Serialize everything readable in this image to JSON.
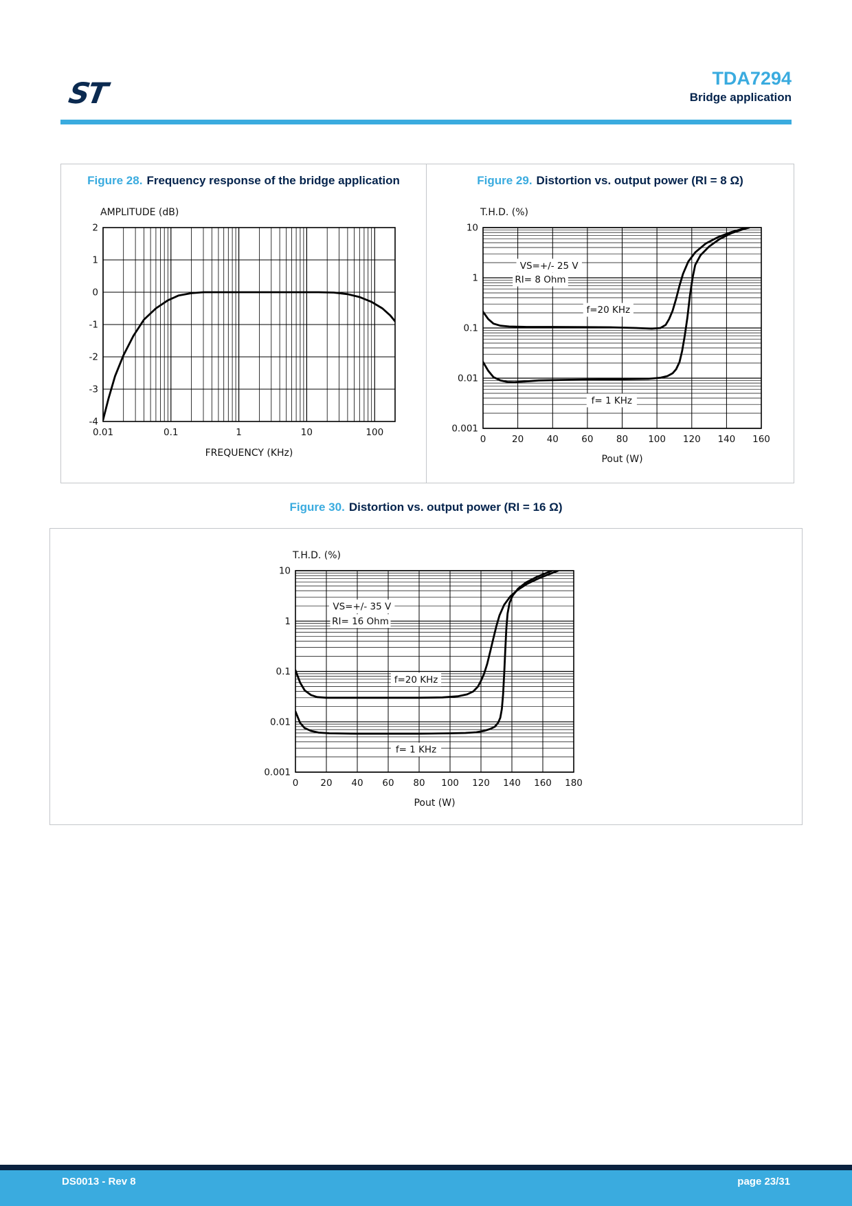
{
  "header": {
    "product": "TDA7294",
    "section": "Bridge application"
  },
  "footer": {
    "left": "DS0013 - Rev 8",
    "right": "page 23/31"
  },
  "colors": {
    "azure": "#3aabdf",
    "navy": "#04234c",
    "footer_navy": "#0a2240",
    "box_border": "#c3c6ca",
    "curve": "#000000"
  },
  "icons": {
    "st_logo": "st-logo"
  },
  "chart_data": [
    {
      "id": "figure-28",
      "type": "line",
      "label": "Figure 28.",
      "title": "Frequency response of the bridge application",
      "ylabel": "AMPLITUDE (dB)",
      "xlabel": "FREQUENCY (KHz)",
      "xscale": "log",
      "yscale": "linear",
      "xlim": [
        0.01,
        200
      ],
      "ylim": [
        -4,
        2
      ],
      "xticks": [
        "0.01",
        "0.1",
        "1",
        "10",
        "100"
      ],
      "yticks": [
        "2",
        "1",
        "0",
        "-1",
        "-2",
        "-3",
        "-4"
      ],
      "grid": "log-x-minor, linear-y-major",
      "legend_position": "none",
      "annotations": [],
      "series": [
        {
          "name": "frequency-response",
          "points": [
            [
              0.01,
              -3.95
            ],
            [
              0.012,
              -3.3
            ],
            [
              0.015,
              -2.6
            ],
            [
              0.02,
              -1.95
            ],
            [
              0.028,
              -1.35
            ],
            [
              0.04,
              -0.85
            ],
            [
              0.06,
              -0.5
            ],
            [
              0.09,
              -0.25
            ],
            [
              0.13,
              -0.1
            ],
            [
              0.2,
              -0.03
            ],
            [
              0.3,
              0
            ],
            [
              1,
              0
            ],
            [
              5,
              0
            ],
            [
              15,
              0
            ],
            [
              25,
              -0.01
            ],
            [
              40,
              -0.06
            ],
            [
              60,
              -0.15
            ],
            [
              90,
              -0.3
            ],
            [
              130,
              -0.5
            ],
            [
              170,
              -0.72
            ],
            [
              200,
              -0.9
            ]
          ]
        }
      ]
    },
    {
      "id": "figure-29",
      "type": "line",
      "label": "Figure 29.",
      "title": "Distortion vs. output power (RI = 8 Ω)",
      "ylabel": "T.H.D. (%)",
      "xlabel": "Pout (W)",
      "xscale": "linear",
      "yscale": "log",
      "xlim": [
        0,
        160
      ],
      "ylim": [
        0.001,
        10
      ],
      "xticks": [
        "0",
        "20",
        "40",
        "60",
        "80",
        "100",
        "120",
        "140",
        "160"
      ],
      "yticks": [
        "10",
        "1",
        "0.1",
        "0.01",
        "0.001"
      ],
      "grid": "linear-x-major, log-y-minor",
      "legend_position": "inline-annotations",
      "annotations": [
        {
          "text": "VS=+/- 25 V",
          "x": 38,
          "y": 1.75
        },
        {
          "text": "RI= 8 Ohm",
          "x": 33,
          "y": 0.92
        },
        {
          "text": "f=20 KHz",
          "x": 72,
          "y": 0.23
        },
        {
          "text": "f= 1 KHz",
          "x": 74,
          "y": 0.0036
        }
      ],
      "series": [
        {
          "name": "f=20 KHz",
          "points": [
            [
              0,
              0.21
            ],
            [
              3,
              0.15
            ],
            [
              6,
              0.122
            ],
            [
              10,
              0.111
            ],
            [
              15,
              0.107
            ],
            [
              25,
              0.105
            ],
            [
              40,
              0.105
            ],
            [
              60,
              0.104
            ],
            [
              75,
              0.103
            ],
            [
              88,
              0.1
            ],
            [
              97,
              0.097
            ],
            [
              102,
              0.1
            ],
            [
              105,
              0.115
            ],
            [
              107,
              0.15
            ],
            [
              109,
              0.22
            ],
            [
              111,
              0.38
            ],
            [
              113,
              0.7
            ],
            [
              115,
              1.2
            ],
            [
              118,
              2.1
            ],
            [
              122,
              3.2
            ],
            [
              128,
              4.8
            ],
            [
              135,
              6.4
            ],
            [
              143,
              8.2
            ],
            [
              150,
              9.6
            ],
            [
              153,
              10
            ]
          ]
        },
        {
          "name": "f= 1 KHz",
          "points": [
            [
              0,
              0.021
            ],
            [
              3,
              0.014
            ],
            [
              6,
              0.0105
            ],
            [
              10,
              0.009
            ],
            [
              14,
              0.0084
            ],
            [
              18,
              0.0083
            ],
            [
              24,
              0.0086
            ],
            [
              32,
              0.009
            ],
            [
              45,
              0.0092
            ],
            [
              60,
              0.0094
            ],
            [
              80,
              0.0095
            ],
            [
              95,
              0.0097
            ],
            [
              102,
              0.0102
            ],
            [
              106,
              0.011
            ],
            [
              109,
              0.0125
            ],
            [
              111,
              0.015
            ],
            [
              113,
              0.021
            ],
            [
              114.5,
              0.035
            ],
            [
              116,
              0.07
            ],
            [
              117.5,
              0.16
            ],
            [
              119,
              0.45
            ],
            [
              120.5,
              1.0
            ],
            [
              122,
              1.8
            ],
            [
              125,
              2.8
            ],
            [
              130,
              4.2
            ],
            [
              136,
              5.9
            ],
            [
              143,
              7.8
            ],
            [
              150,
              9.4
            ],
            [
              153,
              10
            ]
          ]
        }
      ]
    },
    {
      "id": "figure-30",
      "type": "line",
      "label": "Figure 30.",
      "title": "Distortion vs. output power (RI = 16 Ω)",
      "ylabel": "T.H.D. (%)",
      "xlabel": "Pout (W)",
      "xscale": "linear",
      "yscale": "log",
      "xlim": [
        0,
        180
      ],
      "ylim": [
        0.001,
        10
      ],
      "xticks": [
        "0",
        "20",
        "40",
        "60",
        "80",
        "100",
        "120",
        "140",
        "160",
        "180"
      ],
      "yticks": [
        "10",
        "1",
        "0.1",
        "0.01",
        "0.001"
      ],
      "grid": "linear-x-major, log-y-minor",
      "legend_position": "inline-annotations",
      "annotations": [
        {
          "text": "VS=+/- 35 V",
          "x": 43,
          "y": 1.95
        },
        {
          "text": "RI= 16 Ohm",
          "x": 42,
          "y": 1.0
        },
        {
          "text": "f=20 KHz",
          "x": 78,
          "y": 0.069
        },
        {
          "text": "f= 1 KHz",
          "x": 78,
          "y": 0.0028
        }
      ],
      "series": [
        {
          "name": "f=20 KHz",
          "points": [
            [
              0,
              0.105
            ],
            [
              3,
              0.06
            ],
            [
              6,
              0.042
            ],
            [
              10,
              0.034
            ],
            [
              14,
              0.031
            ],
            [
              20,
              0.03
            ],
            [
              40,
              0.03
            ],
            [
              60,
              0.03
            ],
            [
              80,
              0.03
            ],
            [
              95,
              0.0305
            ],
            [
              105,
              0.032
            ],
            [
              111,
              0.035
            ],
            [
              115,
              0.04
            ],
            [
              118,
              0.05
            ],
            [
              120,
              0.065
            ],
            [
              122,
              0.09
            ],
            [
              124,
              0.14
            ],
            [
              126,
              0.25
            ],
            [
              128,
              0.45
            ],
            [
              130,
              0.8
            ],
            [
              132,
              1.3
            ],
            [
              135,
              2.1
            ],
            [
              139,
              3.1
            ],
            [
              144,
              4.2
            ],
            [
              150,
              5.5
            ],
            [
              158,
              7.2
            ],
            [
              166,
              9.0
            ],
            [
              170,
              10
            ]
          ]
        },
        {
          "name": "f= 1 KHz",
          "points": [
            [
              0,
              0.016
            ],
            [
              3,
              0.0095
            ],
            [
              6,
              0.0075
            ],
            [
              10,
              0.0066
            ],
            [
              15,
              0.0061
            ],
            [
              22,
              0.0059
            ],
            [
              40,
              0.0058
            ],
            [
              60,
              0.0058
            ],
            [
              80,
              0.0058
            ],
            [
              100,
              0.0059
            ],
            [
              110,
              0.006
            ],
            [
              117,
              0.0062
            ],
            [
              122,
              0.0066
            ],
            [
              126,
              0.0072
            ],
            [
              129,
              0.008
            ],
            [
              131,
              0.0095
            ],
            [
              132.5,
              0.012
            ],
            [
              133.5,
              0.018
            ],
            [
              134.3,
              0.035
            ],
            [
              135,
              0.09
            ],
            [
              135.7,
              0.25
            ],
            [
              136.4,
              0.7
            ],
            [
              137.2,
              1.4
            ],
            [
              138.5,
              2.3
            ],
            [
              140.5,
              3.2
            ],
            [
              144,
              4.4
            ],
            [
              149,
              5.8
            ],
            [
              156,
              7.5
            ],
            [
              163,
              9.2
            ],
            [
              166,
              10
            ]
          ]
        }
      ]
    }
  ]
}
